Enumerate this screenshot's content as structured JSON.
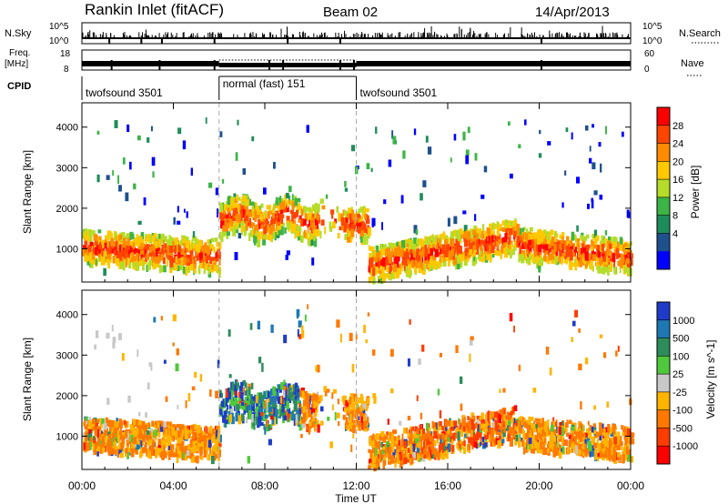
{
  "chart_data": {
    "type": "heatmap",
    "title": "Rankin Inlet (fitACF)",
    "beam": "Beam 02",
    "date": "14/Apr/2013",
    "xlabel": "Time UT",
    "x_ticks": [
      "00:00",
      "04:00",
      "08:00",
      "12:00",
      "16:00",
      "20:00",
      "00:00"
    ],
    "x_range_hours": [
      0,
      24
    ],
    "header": {
      "nsky_label": "N.Sky",
      "nsky_ticks": [
        "10^5",
        "10^0"
      ],
      "nsearch_label": "N.Search",
      "nsearch_ticks": [
        "10^5",
        "10^0"
      ],
      "freq_label": "Freq.",
      "freq_unit": "[MHz]",
      "freq_ticks": [
        "18",
        "8"
      ],
      "nave_label": "Nave",
      "nave_ticks": [
        "60",
        "0"
      ],
      "cpid_label": "CPID",
      "cpid_segments": [
        {
          "start_hour": 0,
          "end_hour": 6,
          "label": "twofsound 3501"
        },
        {
          "start_hour": 6,
          "end_hour": 12,
          "label": "normal (fast) 151"
        },
        {
          "start_hour": 12,
          "end_hour": 24,
          "label": "twofsound 3501"
        }
      ]
    },
    "panels": [
      {
        "name": "power",
        "ylabel": "Slant Range [km]",
        "y_ticks": [
          1000,
          2000,
          3000,
          4000
        ],
        "ylim": [
          180,
          4600
        ],
        "colorbar_label": "Power [dB]",
        "colorbar_ticks": [
          "28",
          "24",
          "20",
          "16",
          "12",
          "8",
          "4"
        ],
        "colorbar_colors": [
          "#ff0000",
          "#ff4500",
          "#ff8c00",
          "#ffc800",
          "#b4dc28",
          "#3cb446",
          "#1e8c5a",
          "#1e508c",
          "#0000ff"
        ]
      },
      {
        "name": "velocity",
        "ylabel": "Slant Range [km]",
        "y_ticks": [
          1000,
          2000,
          3000,
          4000
        ],
        "ylim": [
          180,
          4600
        ],
        "colorbar_label": "Velocity [m s^-1]",
        "colorbar_ticks": [
          "1000",
          "500",
          "100",
          "25",
          "-25",
          "-100",
          "-500",
          "-1000"
        ],
        "colorbar_colors": [
          "#1e3cc8",
          "#1e78b4",
          "#2d8c5a",
          "#50c83c",
          "#c8c8c8",
          "#ffb400",
          "#ff7800",
          "#ff3c00",
          "#ff0000"
        ]
      }
    ]
  }
}
